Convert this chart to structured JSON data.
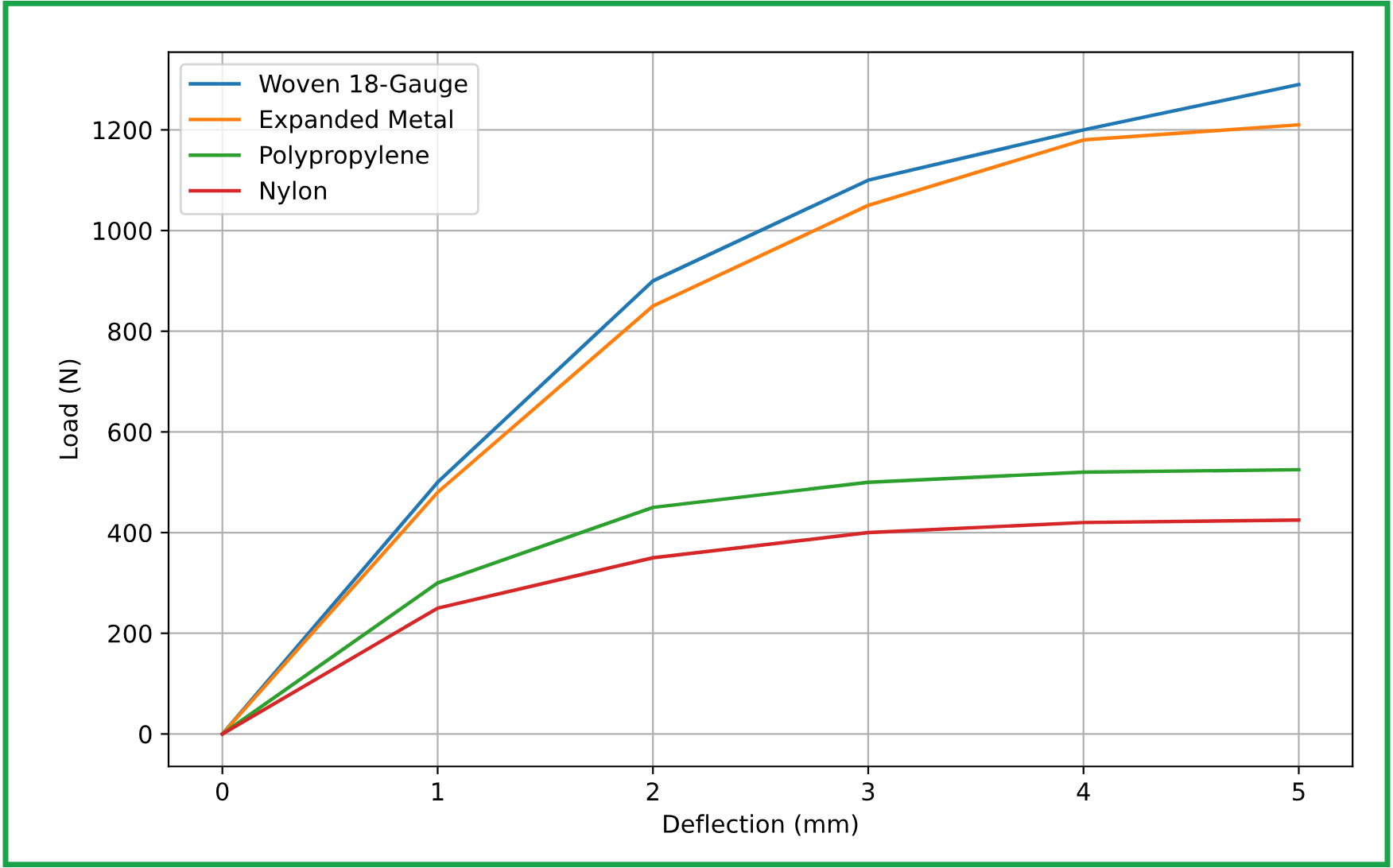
{
  "chart_data": {
    "type": "line",
    "xlabel": "Deflection (mm)",
    "ylabel": "Load (N)",
    "x": [
      0,
      1,
      2,
      3,
      4,
      5
    ],
    "series": [
      {
        "name": "Woven 18-Gauge",
        "color": "#1f77b4",
        "values": [
          0,
          500,
          900,
          1100,
          1200,
          1290
        ]
      },
      {
        "name": "Expanded Metal",
        "color": "#ff7f0e",
        "values": [
          0,
          480,
          850,
          1050,
          1180,
          1210
        ]
      },
      {
        "name": "Polypropylene",
        "color": "#2ca02c",
        "values": [
          0,
          300,
          450,
          500,
          520,
          525
        ]
      },
      {
        "name": "Nylon",
        "color": "#d62728",
        "values": [
          0,
          250,
          350,
          400,
          420,
          425
        ]
      }
    ],
    "xlim": [
      -0.25,
      5.25
    ],
    "ylim": [
      -64.5,
      1354.5
    ],
    "xticks": [
      0,
      1,
      2,
      3,
      4,
      5
    ],
    "yticks": [
      0,
      200,
      400,
      600,
      800,
      1000,
      1200
    ],
    "grid": true,
    "legend": "top left",
    "marker": "none",
    "line_style": "solid"
  }
}
